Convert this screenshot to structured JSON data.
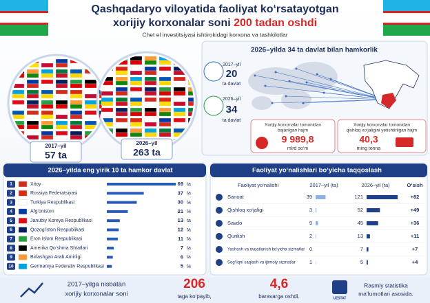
{
  "header": {
    "title_line1": "Qashqadaryo viloyatida faoliyat ko‘rsatayotgan",
    "title_line2": "xorijiy korxonalar soni",
    "title_highlight": "200 tadan oshdi",
    "subtitle": "Chet el investitsiyasi ishtirokidagi korxona va tashkilotlar"
  },
  "totals": [
    {
      "year": "2017–yil",
      "count": "57 ta"
    },
    {
      "year": "2026–yil",
      "count": "263 ta"
    }
  ],
  "cooperation": {
    "title": "2026–yilda 34 ta davlat bilan hamkorlik",
    "stats": [
      {
        "year": "2017–yil",
        "value": "20",
        "unit": "ta davlat"
      },
      {
        "year": "2026–yil",
        "value": "34",
        "unit": "ta davlat"
      }
    ],
    "volumes": [
      {
        "label": [
          "Xorijiy korxonalar tomonidan",
          "bajarilgan hajm"
        ],
        "value": "9 989,8",
        "unit": "mlrd so‘m"
      },
      {
        "label": [
          "Xorijiy korxonalar tomonidan",
          "qishloq xo‘jaligini yetishtirilgan hajm"
        ],
        "value": "40,3",
        "unit": "ming tonna"
      }
    ]
  },
  "partners": {
    "title": "2026–yilda eng yirik 10 ta hamkor davlat",
    "unit": "ta",
    "rows": [
      {
        "rank": 1,
        "name": "Xitoy",
        "value": 69
      },
      {
        "rank": 2,
        "name": "Rossiya Federatsiyasi",
        "value": 37
      },
      {
        "rank": 3,
        "name": "Turkiya Respublikasi",
        "value": 30
      },
      {
        "rank": 4,
        "name": "Afg‘oniston",
        "value": 21
      },
      {
        "rank": 5,
        "name": "Janubiy Koreya Respublikasi",
        "value": 13
      },
      {
        "rank": 6,
        "name": "Qozog‘iston Respublikasi",
        "value": 12
      },
      {
        "rank": 7,
        "name": "Eron Islom Respublikasi",
        "value": 11
      },
      {
        "rank": 8,
        "name": "Amerika Qo‘shma Shtatlari",
        "value": 7
      },
      {
        "rank": 9,
        "name": "Birlashgan Arab Amirligi",
        "value": 6
      },
      {
        "rank": 10,
        "name": "Germaniya Federativ Respublikasi",
        "value": 5
      }
    ]
  },
  "sectors": {
    "title": "Faoliyat yo‘nalishlari bo‘yicha taqqoslash",
    "columns": [
      "Faoliyat yo‘nalishi",
      "2017–yil (ta)",
      "2026–yil (ta)",
      "O‘sish"
    ],
    "rows": [
      {
        "name": "Sanoat",
        "y2017": 39,
        "y2026": 121,
        "growth": "+82"
      },
      {
        "name": "Qishloq xo‘jaligi",
        "y2017": 3,
        "y2026": 52,
        "growth": "+49"
      },
      {
        "name": "Savdo",
        "y2017": 9,
        "y2026": 45,
        "growth": "+36"
      },
      {
        "name": "Qurilish",
        "y2017": 2,
        "y2026": 13,
        "growth": "+11"
      },
      {
        "name": "Yashash va ovqatlanish bo‘yicha xizmatlar",
        "y2017": 0,
        "y2026": 7,
        "growth": "+7"
      },
      {
        "name": "Sog‘liqni saqlash va ijtimoiy xizmatlar",
        "y2017": 1,
        "y2026": 5,
        "growth": "+4"
      }
    ]
  },
  "footer": {
    "line1": "2017–yilga nisbatan",
    "line2": "xorijiy korxonalar soni",
    "increase": "206",
    "increase_text": "taga ko‘payib,",
    "ratio": "4,6",
    "ratio_text": "baravarga oshdi.",
    "logo": "UZSTAT",
    "source_line1": "Rasmiy statistika",
    "source_line2": "ma’lumotlari asosida."
  }
}
